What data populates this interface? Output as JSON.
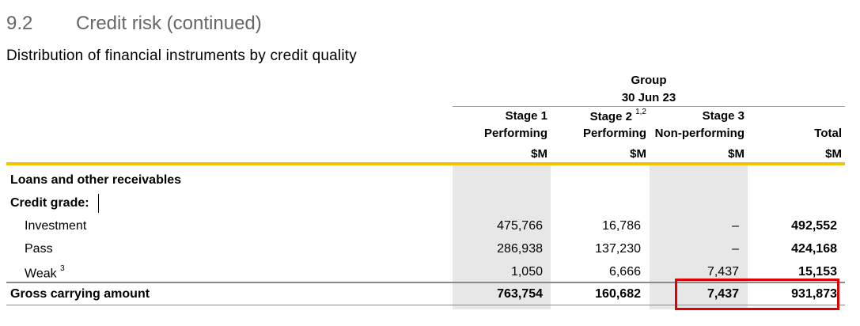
{
  "section": {
    "number": "9.2",
    "title": "Credit risk (continued)"
  },
  "table_title": "Distribution of financial instruments by credit quality",
  "header": {
    "group": "Group",
    "date": "30 Jun 23",
    "columns": [
      {
        "line1": "Stage 1",
        "line1_sup": "",
        "line2": "Performing",
        "unit": "$M"
      },
      {
        "line1": "Stage 2",
        "line1_sup": "1,2",
        "line2": "Performing",
        "unit": "$M"
      },
      {
        "line1": "Stage 3",
        "line1_sup": "",
        "line2": "Non-performing",
        "unit": "$M"
      },
      {
        "line1": "",
        "line1_sup": "",
        "line2": "Total",
        "unit": "$M"
      }
    ]
  },
  "sections": {
    "loans": "Loans and other receivables",
    "credit_grade": "Credit grade:"
  },
  "rows": [
    {
      "label": "Investment",
      "sup": "",
      "values": [
        "475,766",
        "16,786",
        "–",
        "492,552"
      ]
    },
    {
      "label": "Pass",
      "sup": "",
      "values": [
        "286,938",
        "137,230",
        "–",
        "424,168"
      ]
    },
    {
      "label": "Weak",
      "sup": "3",
      "values": [
        "1,050",
        "6,666",
        "7,437",
        "15,153"
      ]
    }
  ],
  "total_row": {
    "label": "Gross carrying amount",
    "values": [
      "763,754",
      "160,682",
      "7,437",
      "931,873"
    ]
  },
  "colors": {
    "gold_rule": "#f5c400",
    "shade": "#e7e7e7",
    "highlight": "#e00000",
    "section_head": "#666666"
  }
}
